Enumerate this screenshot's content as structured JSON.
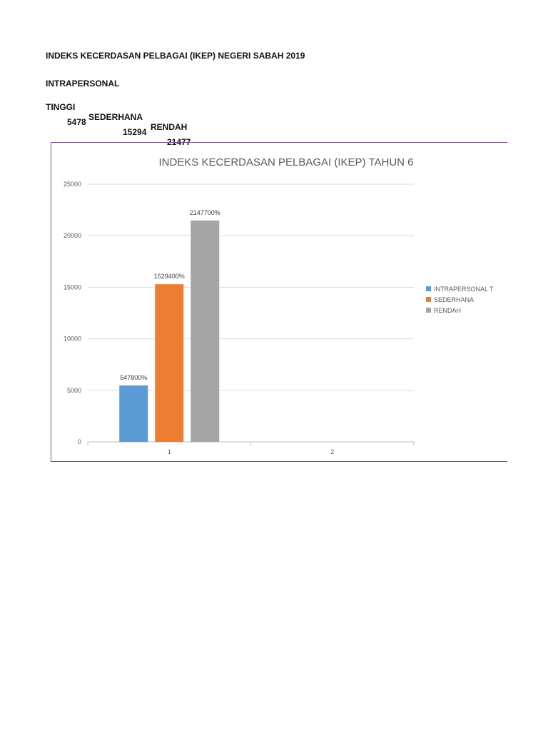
{
  "document": {
    "heading": "INDEKS KECERDASAN PELBAGAI (IKEP) NEGERI SABAH 2019",
    "section_title": "INTRAPERSONAL",
    "columns": [
      "TINGGI",
      "SEDERHANA",
      "RENDAH"
    ],
    "values": [
      "5478",
      "15294",
      "21477"
    ]
  },
  "chart_data": {
    "type": "bar",
    "title": "INDEKS KECERDASAN PELBAGAI (IKEP) TAHUN 6",
    "categories": [
      "1",
      "2"
    ],
    "series": [
      {
        "name": "INTRAPERSONAL T",
        "values": [
          5478,
          null
        ],
        "labels": [
          "547800%",
          ""
        ],
        "color": "#5b9bd5"
      },
      {
        "name": "SEDERHANA",
        "values": [
          15294,
          null
        ],
        "labels": [
          "1529400%",
          ""
        ],
        "color": "#ed7d31"
      },
      {
        "name": "RENDAH",
        "values": [
          21477,
          null
        ],
        "labels": [
          "2147700%",
          ""
        ],
        "color": "#a5a5a5"
      }
    ],
    "yticks": [
      "0",
      "5000",
      "10000",
      "15000",
      "20000",
      "25000"
    ],
    "ylim": [
      0,
      25000
    ],
    "grid": true,
    "legend_position": "right"
  }
}
